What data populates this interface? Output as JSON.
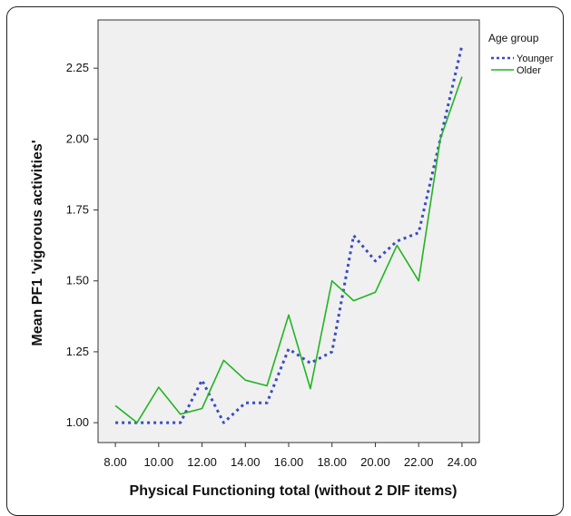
{
  "chart_data": {
    "type": "line",
    "xlabel": "Physical Functioning total (without 2 DIF items)",
    "ylabel": "Mean PF1 'vigorous activities'",
    "x": [
      8,
      9,
      10,
      11,
      12,
      13,
      14,
      15,
      16,
      17,
      18,
      19,
      20,
      21,
      22,
      23,
      24
    ],
    "xticks": [
      8,
      10,
      12,
      14,
      16,
      18,
      20,
      22,
      24
    ],
    "xtick_labels": [
      "8.00",
      "10.00",
      "12.00",
      "14.00",
      "16.00",
      "18.00",
      "20.00",
      "22.00",
      "24.00"
    ],
    "xlim": [
      7.2,
      24.8
    ],
    "yticks": [
      1.0,
      1.25,
      1.5,
      1.75,
      2.0,
      2.25
    ],
    "ytick_labels": [
      "1.00",
      "1.25",
      "1.50",
      "1.75",
      "2.00",
      "2.25"
    ],
    "ylim": [
      0.93,
      2.42
    ],
    "grid": false,
    "legend": {
      "title": "Age group",
      "placement": "top-right"
    },
    "series": [
      {
        "name": "Younger",
        "style": "dotted",
        "color": "#3b4cc0",
        "values": [
          1.0,
          1.0,
          1.0,
          1.0,
          1.15,
          1.0,
          1.07,
          1.07,
          1.26,
          1.21,
          1.25,
          1.66,
          1.57,
          1.64,
          1.67,
          2.0,
          2.33
        ]
      },
      {
        "name": "Older",
        "style": "solid",
        "color": "#22b422",
        "values": [
          1.06,
          1.0,
          1.125,
          1.03,
          1.05,
          1.22,
          1.15,
          1.13,
          1.38,
          1.12,
          1.5,
          1.43,
          1.46,
          1.625,
          1.5,
          2.0,
          2.22
        ]
      }
    ]
  }
}
